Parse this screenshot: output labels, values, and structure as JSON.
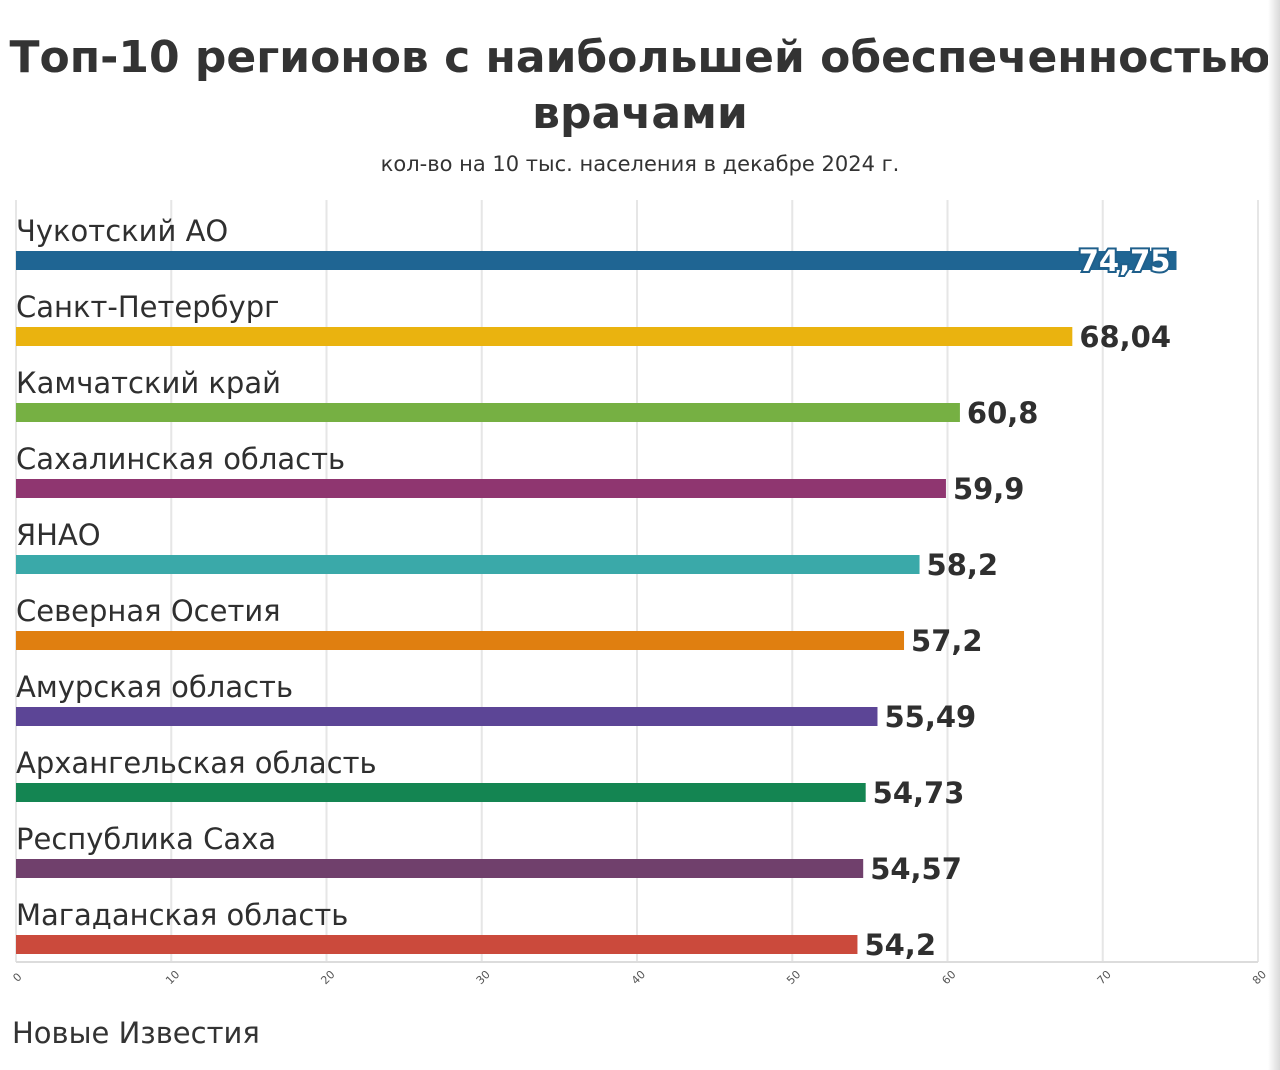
{
  "chart_data": {
    "type": "bar",
    "orientation": "horizontal",
    "title": "Топ-10 регионов с наибольшей обеспеченностью врачами",
    "title_lines": [
      "Топ-10 регионов с наибольшей обеспеченностью",
      "врачами"
    ],
    "subtitle": "кол-во на 10 тыс. населения в декабре 2024 г.",
    "categories": [
      "Чукотский АО",
      "Санкт-Петербург",
      "Камчатский край",
      "Сахалинская область",
      "ЯНАО",
      "Северная Осетия",
      "Амурская область",
      "Архангельская область",
      "Республика Саха",
      "Магаданская область"
    ],
    "values": [
      74.75,
      68.04,
      60.8,
      59.9,
      58.2,
      57.2,
      55.49,
      54.73,
      54.57,
      54.2
    ],
    "value_labels": [
      "74,75",
      "68,04",
      "60,8",
      "59,9",
      "58,2",
      "57,2",
      "55,49",
      "54,73",
      "54,57",
      "54,2"
    ],
    "colors": [
      "#1f6593",
      "#eab30f",
      "#76b043",
      "#8f3670",
      "#3aa9a9",
      "#e07f10",
      "#5c4596",
      "#148552",
      "#70406c",
      "#cb4a3c"
    ],
    "xlim": [
      0,
      80
    ],
    "xticks": [
      0,
      10,
      20,
      30,
      40,
      50,
      60,
      70,
      80
    ],
    "grid": true,
    "xlabel": "",
    "ylabel": ""
  },
  "footer": {
    "source": "Новые Известия"
  }
}
